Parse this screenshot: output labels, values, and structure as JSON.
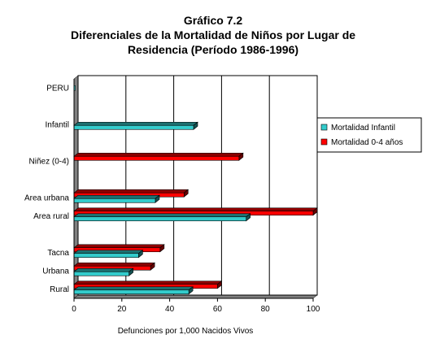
{
  "chart_data": {
    "type": "bar",
    "orientation": "horizontal",
    "title": [
      "Gráfico 7.2",
      "Diferenciales de la Mortalidad de Niños por Lugar de",
      "Residencia (Período 1986-1996)"
    ],
    "xlabel": "Defunciones por 1,000 Nacidos Vivos",
    "xlim": [
      0,
      100
    ],
    "xticks": [
      "0",
      "20",
      "40",
      "60",
      "80",
      "100"
    ],
    "categories": [
      "PERU",
      "",
      "Infantil",
      "",
      "Niñez (0-4)",
      "",
      "Area urbana",
      "Area rural",
      "",
      "Tacna",
      "Urbana",
      "Rural"
    ],
    "series": [
      {
        "name": "Mortalidad Infantil",
        "color": "#33cccc",
        "values": [
          0,
          0,
          50,
          0,
          0,
          0,
          34,
          72,
          0,
          27,
          23,
          48
        ]
      },
      {
        "name": "Mortalidad 0-4 años",
        "color": "#ff0000",
        "values": [
          0,
          0,
          0,
          0,
          69,
          0,
          46,
          100,
          0,
          36,
          32,
          60
        ]
      }
    ],
    "grid": "vertical",
    "legend_position": "right"
  }
}
